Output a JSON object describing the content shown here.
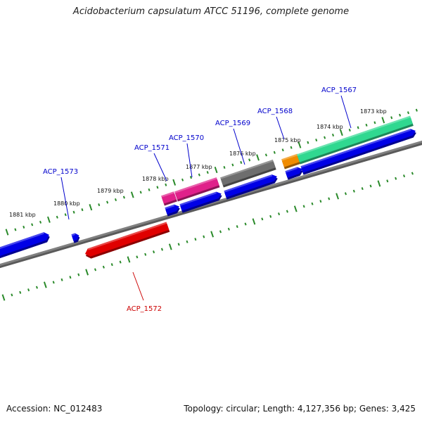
{
  "title": "Acidobacterium capsulatum ATCC 51196, complete genome",
  "footer": {
    "accession": "Accession: NC_012483",
    "summary": "Topology: circular; Length: 4,127,356 bp; Genes: 3,425"
  },
  "colors": {
    "ruler_tick": "#2a8a2a",
    "backbone": "#808080",
    "cds_forward": "#0000e6",
    "label_forward": "#0000cc",
    "label_reverse": "#cc0000"
  },
  "ruler_labels": [
    "1881 kbp",
    "1880 kbp",
    "1879 kbp",
    "1878 kbp",
    "1877 kbp",
    "1876 kbp",
    "1875 kbp",
    "1874 kbp",
    "1873 kbp"
  ],
  "gene_labels": [
    {
      "text": "ACP_1573",
      "color": "#0000cc"
    },
    {
      "text": "ACP_1571",
      "color": "#0000cc"
    },
    {
      "text": "ACP_1570",
      "color": "#0000cc"
    },
    {
      "text": "ACP_1569",
      "color": "#0000cc"
    },
    {
      "text": "ACP_1568",
      "color": "#0000cc"
    },
    {
      "text": "ACP_1567",
      "color": "#0000cc"
    },
    {
      "text": "ACP_1572",
      "color": "#cc0000"
    }
  ],
  "features": [
    {
      "name": "cds-left-edge",
      "color": "#0000e6"
    },
    {
      "name": "cds-small-1573",
      "color": "#0000e6"
    },
    {
      "name": "cds-1571",
      "color": "#0000e6"
    },
    {
      "name": "cds-1570",
      "color": "#0000e6"
    },
    {
      "name": "cds-1569",
      "color": "#0000e6"
    },
    {
      "name": "cds-1568",
      "color": "#0000e6"
    },
    {
      "name": "cds-1567",
      "color": "#0000e6"
    },
    {
      "name": "annot-1571",
      "color": "#e0208a"
    },
    {
      "name": "annot-1570",
      "color": "#e0208a"
    },
    {
      "name": "annot-1569",
      "color": "#6e6e6e"
    },
    {
      "name": "annot-1568",
      "color": "#f08c00"
    },
    {
      "name": "annot-1567",
      "color": "#30d890"
    },
    {
      "name": "cds-1572-reverse",
      "color": "#e00000"
    }
  ]
}
